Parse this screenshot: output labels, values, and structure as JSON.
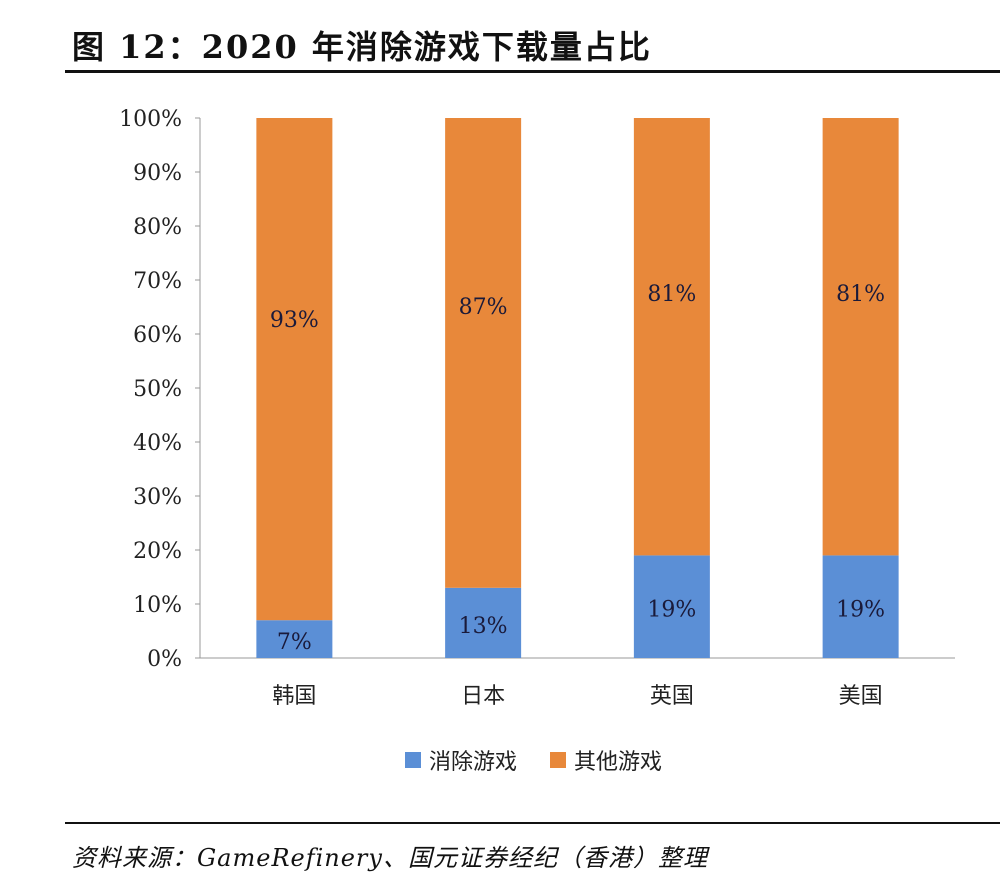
{
  "title": "图 12：2020 年消除游戏下载量占比",
  "source": "资料来源：GameRefinery、国元证券经纪（香港）整理",
  "chart_data": {
    "type": "bar",
    "stacked": true,
    "categories": [
      "韩国",
      "日本",
      "英国",
      "美国"
    ],
    "series": [
      {
        "name": "消除游戏",
        "values": [
          7,
          13,
          19,
          19
        ],
        "labels": [
          "7%",
          "13%",
          "19%",
          "19%"
        ],
        "color": "#5b8fd6"
      },
      {
        "name": "其他游戏",
        "values": [
          93,
          87,
          81,
          81
        ],
        "labels": [
          "93%",
          "87%",
          "81%",
          "81%"
        ],
        "color": "#e8883a"
      }
    ],
    "yticks": [
      "0%",
      "10%",
      "20%",
      "30%",
      "40%",
      "50%",
      "60%",
      "70%",
      "80%",
      "90%",
      "100%"
    ],
    "ylim": [
      0,
      100
    ],
    "grid": false,
    "legend": "bottom"
  }
}
